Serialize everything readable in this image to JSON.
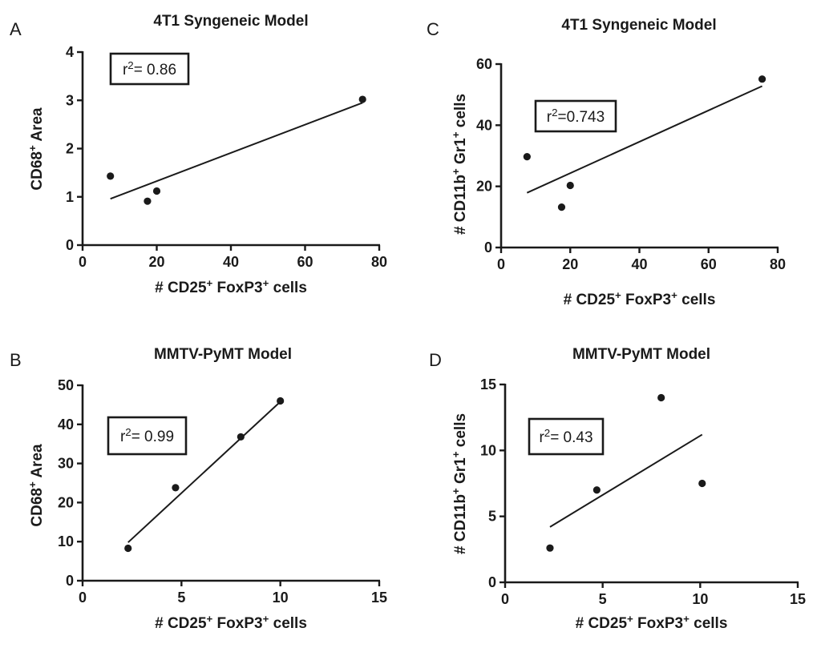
{
  "chart_data": [
    {
      "id": "A",
      "panel_label": "A",
      "type": "scatter",
      "title": "4T1 Syngeneic Model",
      "xlabel": "# CD25⁺ FoxP3⁺ cells",
      "ylabel": "CD68⁺ Area",
      "xlim": [
        0,
        80
      ],
      "ylim": [
        0,
        4
      ],
      "xticks": [
        0,
        20,
        40,
        60,
        80
      ],
      "yticks": [
        0,
        1,
        2,
        3,
        4
      ],
      "points": [
        {
          "x": 7.5,
          "y": 1.43
        },
        {
          "x": 17.5,
          "y": 0.91
        },
        {
          "x": 20,
          "y": 1.12
        },
        {
          "x": 75.5,
          "y": 3.02
        }
      ],
      "fit": {
        "x1": 7.5,
        "y1": 0.96,
        "x2": 75.5,
        "y2": 2.95
      },
      "r2_label": "r²= 0.86"
    },
    {
      "id": "B",
      "panel_label": "B",
      "type": "scatter",
      "title": "MMTV-PyMT Model",
      "xlabel": "# CD25⁺ FoxP3⁺ cells",
      "ylabel": "CD68⁺ Area",
      "xlim": [
        0,
        15
      ],
      "ylim": [
        0,
        50
      ],
      "xticks": [
        0,
        5,
        10,
        15
      ],
      "yticks": [
        0,
        10,
        20,
        30,
        40,
        50
      ],
      "points": [
        {
          "x": 2.3,
          "y": 8.3
        },
        {
          "x": 4.7,
          "y": 23.8
        },
        {
          "x": 8.0,
          "y": 36.8
        },
        {
          "x": 10.0,
          "y": 46.0
        }
      ],
      "fit": {
        "x1": 2.3,
        "y1": 9.8,
        "x2": 10.0,
        "y2": 45.8
      },
      "r2_label": "r²= 0.99"
    },
    {
      "id": "C",
      "panel_label": "C",
      "type": "scatter",
      "title": "4T1 Syngeneic Model",
      "xlabel": "# CD25⁺ FoxP3⁺ cells",
      "ylabel": "# CD11b⁺ Gr1⁺ cells",
      "xlim": [
        0,
        80
      ],
      "ylim": [
        0,
        60
      ],
      "xticks": [
        0,
        20,
        40,
        60,
        80
      ],
      "yticks": [
        0,
        20,
        40,
        60
      ],
      "points": [
        {
          "x": 7.5,
          "y": 29.7
        },
        {
          "x": 17.5,
          "y": 13.2
        },
        {
          "x": 20,
          "y": 20.3
        },
        {
          "x": 75.5,
          "y": 55.1
        }
      ],
      "fit": {
        "x1": 7.5,
        "y1": 17.9,
        "x2": 75.5,
        "y2": 52.8
      },
      "r2_label": "r²=0.743"
    },
    {
      "id": "D",
      "panel_label": "D",
      "type": "scatter",
      "title": "MMTV-PyMT Model",
      "xlabel": "# CD25⁺ FoxP3⁺ cells",
      "ylabel": "# CD11b⁺ Gr1⁺ cells",
      "xlim": [
        0,
        15
      ],
      "ylim": [
        0,
        15
      ],
      "xticks": [
        0,
        5,
        10,
        15
      ],
      "yticks": [
        0,
        5,
        10,
        15
      ],
      "points": [
        {
          "x": 2.3,
          "y": 2.6
        },
        {
          "x": 4.7,
          "y": 7.0
        },
        {
          "x": 8.0,
          "y": 14.0
        },
        {
          "x": 10.1,
          "y": 7.5
        }
      ],
      "fit": {
        "x1": 2.3,
        "y1": 4.2,
        "x2": 10.1,
        "y2": 11.2
      },
      "r2_label": "r²= 0.43"
    }
  ]
}
